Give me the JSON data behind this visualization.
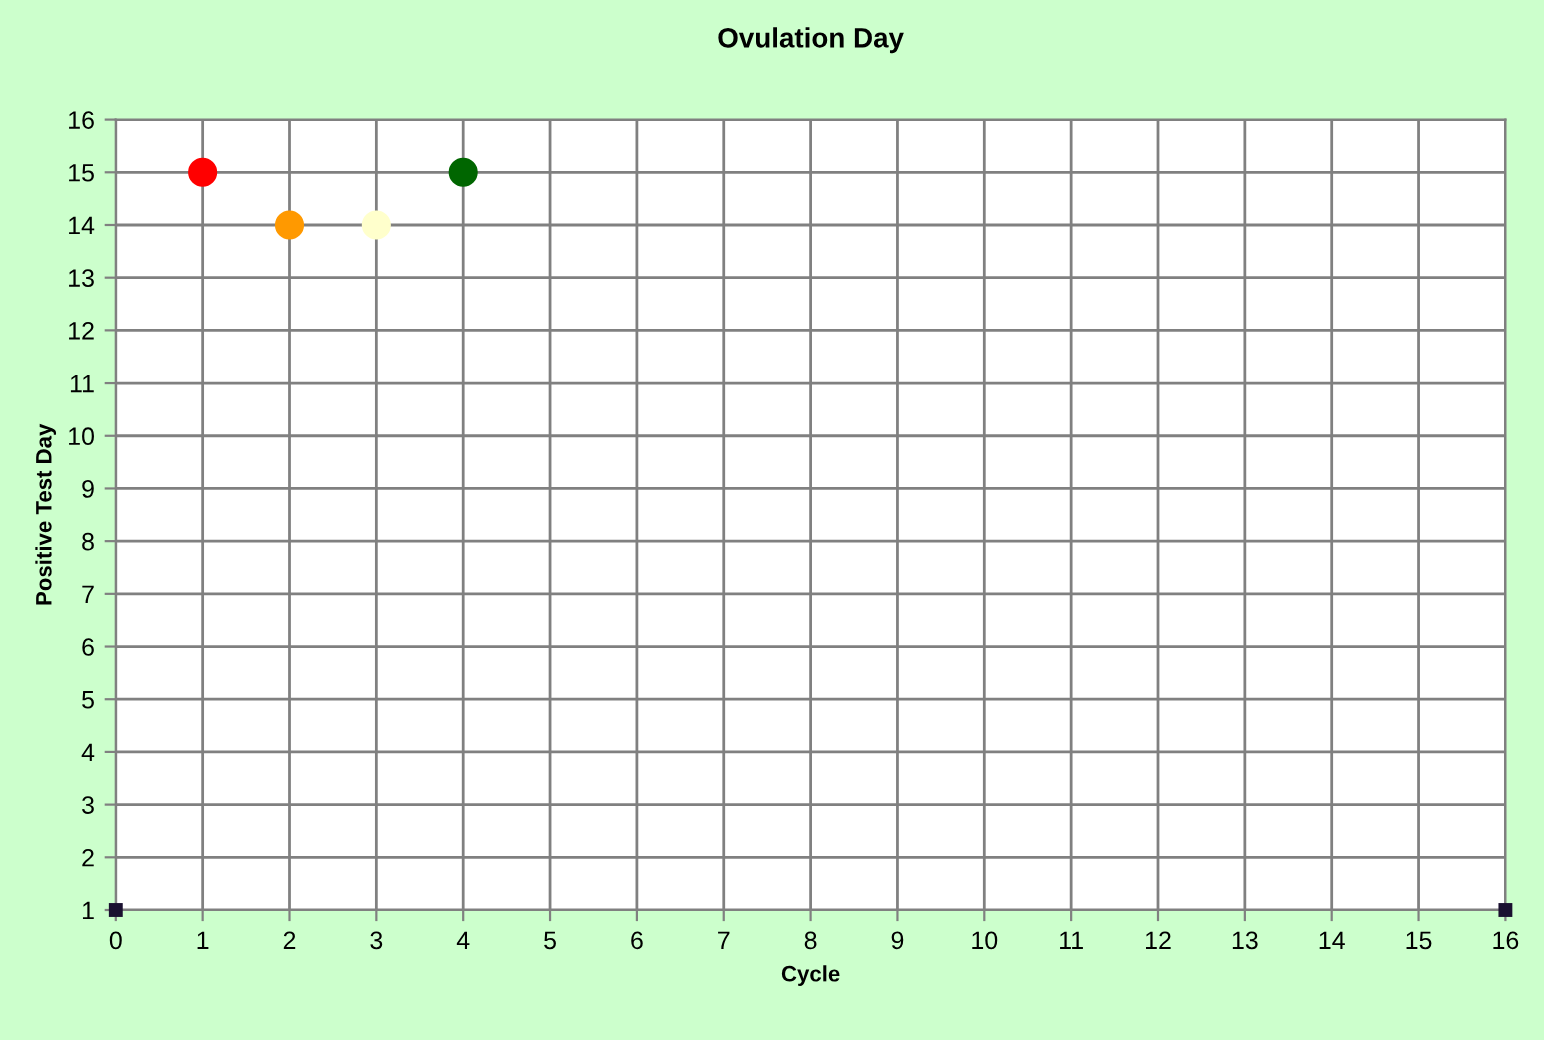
{
  "chart_data": {
    "type": "scatter",
    "title": "Ovulation Day",
    "xlabel": "Cycle",
    "ylabel": "Positive Test Day",
    "xlim": [
      0,
      16
    ],
    "xticks": [
      0,
      1,
      2,
      3,
      4,
      5,
      6,
      7,
      8,
      9,
      10,
      11,
      12,
      13,
      14,
      15,
      16
    ],
    "ylim": [
      1,
      16
    ],
    "yticks": [
      1,
      2,
      3,
      4,
      5,
      6,
      7,
      8,
      9,
      10,
      11,
      12,
      13,
      14,
      15,
      16
    ],
    "grid": true,
    "series": [
      {
        "x": [
          1,
          2,
          3,
          4
        ],
        "values": [
          15,
          14,
          14,
          15
        ],
        "colors": [
          "#ff0000",
          "#ff9900",
          "#ffffcc",
          "#006600"
        ],
        "marker": "circle"
      },
      {
        "x": [
          0,
          16
        ],
        "values": [
          1,
          1
        ],
        "color": "#1a1030",
        "marker": "square"
      }
    ]
  }
}
